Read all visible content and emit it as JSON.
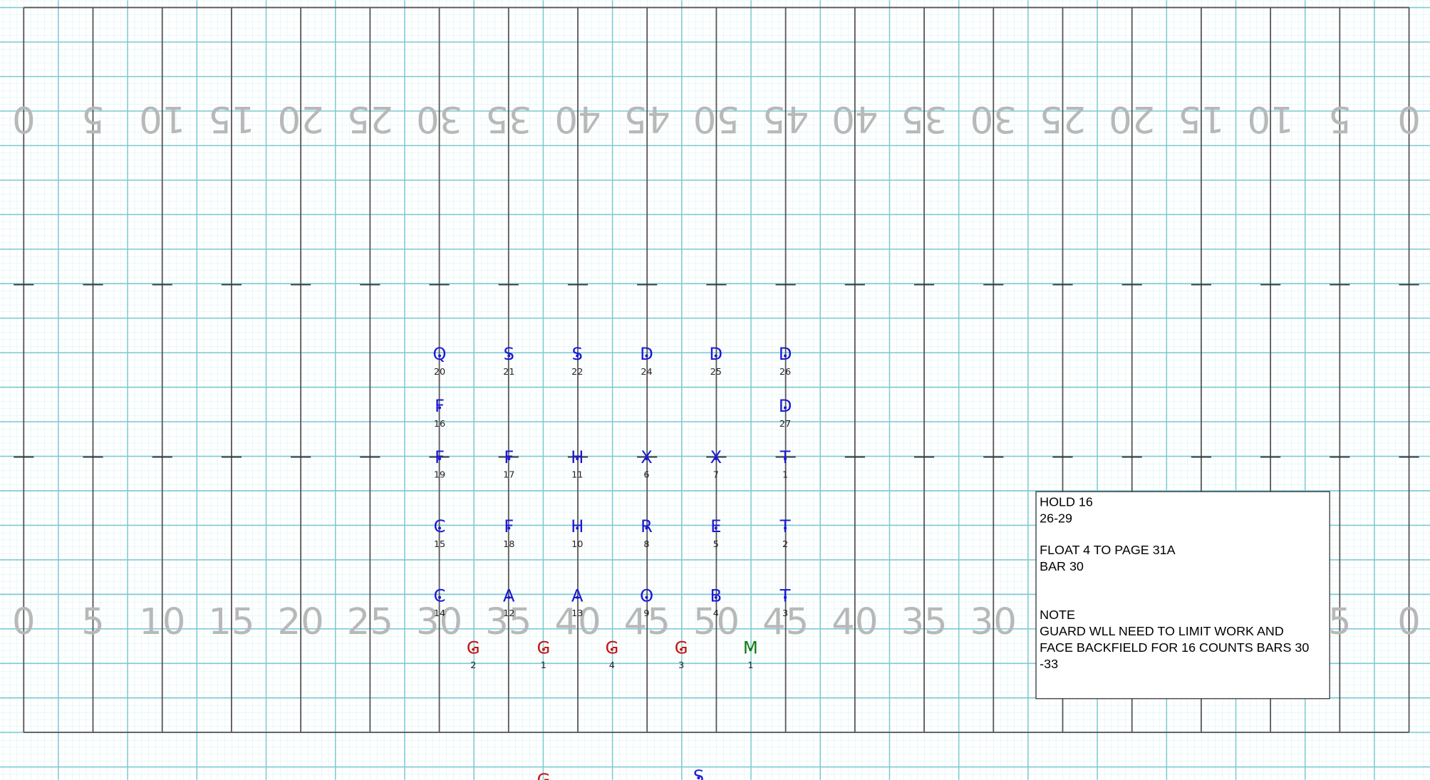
{
  "field": {
    "yard_numbers": [
      0,
      5,
      10,
      15,
      20,
      25,
      30,
      35,
      40,
      45,
      50,
      45,
      40,
      35,
      30,
      25,
      20,
      15,
      10,
      5,
      0
    ]
  },
  "performers": [
    {
      "symbol": "Q",
      "number": 20,
      "color": "#1a1ad6"
    },
    {
      "symbol": "S",
      "number": 21,
      "color": "#1a1ad6"
    },
    {
      "symbol": "S",
      "number": 22,
      "color": "#1a1ad6"
    },
    {
      "symbol": "D",
      "number": 24,
      "color": "#1a1ad6"
    },
    {
      "symbol": "D",
      "number": 25,
      "color": "#1a1ad6"
    },
    {
      "symbol": "D",
      "number": 26,
      "color": "#1a1ad6"
    },
    {
      "symbol": "F",
      "number": 16,
      "color": "#1a1ad6"
    },
    {
      "symbol": "D",
      "number": 27,
      "color": "#1a1ad6"
    },
    {
      "symbol": "F",
      "number": 19,
      "color": "#1a1ad6"
    },
    {
      "symbol": "F",
      "number": 17,
      "color": "#1a1ad6"
    },
    {
      "symbol": "H",
      "number": 11,
      "color": "#1a1ad6"
    },
    {
      "symbol": "X",
      "number": 6,
      "color": "#1a1ad6"
    },
    {
      "symbol": "X",
      "number": 7,
      "color": "#1a1ad6"
    },
    {
      "symbol": "T",
      "number": 1,
      "color": "#1a1ad6"
    },
    {
      "symbol": "C",
      "number": 15,
      "color": "#1a1ad6"
    },
    {
      "symbol": "F",
      "number": 18,
      "color": "#1a1ad6"
    },
    {
      "symbol": "H",
      "number": 10,
      "color": "#1a1ad6"
    },
    {
      "symbol": "R",
      "number": 8,
      "color": "#1a1ad6"
    },
    {
      "symbol": "E",
      "number": 5,
      "color": "#1a1ad6"
    },
    {
      "symbol": "T",
      "number": 2,
      "color": "#1a1ad6"
    },
    {
      "symbol": "C",
      "number": 14,
      "color": "#1a1ad6"
    },
    {
      "symbol": "A",
      "number": 12,
      "color": "#1a1ad6"
    },
    {
      "symbol": "A",
      "number": 13,
      "color": "#1a1ad6"
    },
    {
      "symbol": "O",
      "number": 9,
      "color": "#1a1ad6"
    },
    {
      "symbol": "B",
      "number": 4,
      "color": "#1a1ad6"
    },
    {
      "symbol": "T",
      "number": 3,
      "color": "#1a1ad6"
    },
    {
      "symbol": "G",
      "number": 2,
      "color": "#c41818"
    },
    {
      "symbol": "G",
      "number": 1,
      "color": "#c41818"
    },
    {
      "symbol": "G",
      "number": 4,
      "color": "#c41818"
    },
    {
      "symbol": "G",
      "number": 3,
      "color": "#c41818"
    },
    {
      "symbol": "M",
      "number": 1,
      "color": "#137a13"
    },
    {
      "symbol": "G",
      "color": "#c41818"
    },
    {
      "symbol": "S",
      "color": "#1a1ad6"
    }
  ],
  "note": {
    "lines": [
      "HOLD 16",
      "26-29",
      "FLOAT 4 TO PAGE 31A",
      "BAR 30",
      "NOTE",
      "GUARD WLL NEED TO LIMIT WORK AND",
      "FACE BACKFIELD FOR 16 COUNTS BARS 30",
      "-33"
    ]
  }
}
